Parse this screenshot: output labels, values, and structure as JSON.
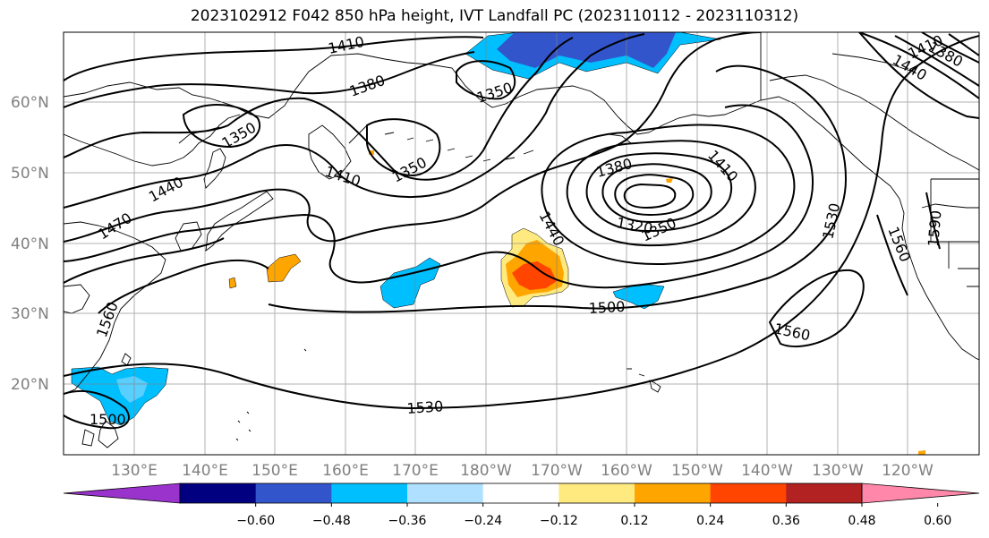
{
  "title": "2023102912 F042 850 hPa height, IVT Landfall PC (2023110112 - 2023110312)",
  "map": {
    "lat_labels": [
      "60°N",
      "50°N",
      "40°N",
      "30°N",
      "20°N"
    ],
    "lon_labels": [
      "130°E",
      "140°E",
      "150°E",
      "160°E",
      "170°E",
      "180°W",
      "170°W",
      "160°W",
      "150°W",
      "140°W",
      "130°W",
      "120°W"
    ],
    "contour_labels": {
      "c1410_top": "1410",
      "c1380_left": "1380",
      "c1350_left": "1350",
      "c1350_center": "1350",
      "c1350_mid": "1350",
      "c1410_mid": "1410",
      "c1440_left": "1440",
      "c1470_left": "1470",
      "c1560_left": "1560",
      "c1500_sw": "1500",
      "c1530_south": "1530",
      "c1440_low": "1440",
      "c1380_low": "1380",
      "c1410_low": "1410",
      "c1320_low": "1320",
      "c1350_low": "1350",
      "c1500_center": "1500",
      "c1560_east": "1560",
      "c1530_east": "1530",
      "c1560_coast": "1560",
      "c1590_coast": "1590",
      "c1380_ne": "1380",
      "c1410_ne": "1410",
      "c1440_ne": "1440"
    }
  },
  "colorbar": {
    "ticks": [
      "−0.60",
      "−0.48",
      "−0.36",
      "−0.24",
      "−0.12",
      "0.12",
      "0.24",
      "0.36",
      "0.48",
      "0.60"
    ],
    "colors": [
      "#9933cc",
      "#000080",
      "#3355cc",
      "#00bfff",
      "#b0e0ff",
      "#ffffff",
      "#ffea80",
      "#ffa500",
      "#ff4500",
      "#b22222",
      "#ff88aa"
    ]
  }
}
